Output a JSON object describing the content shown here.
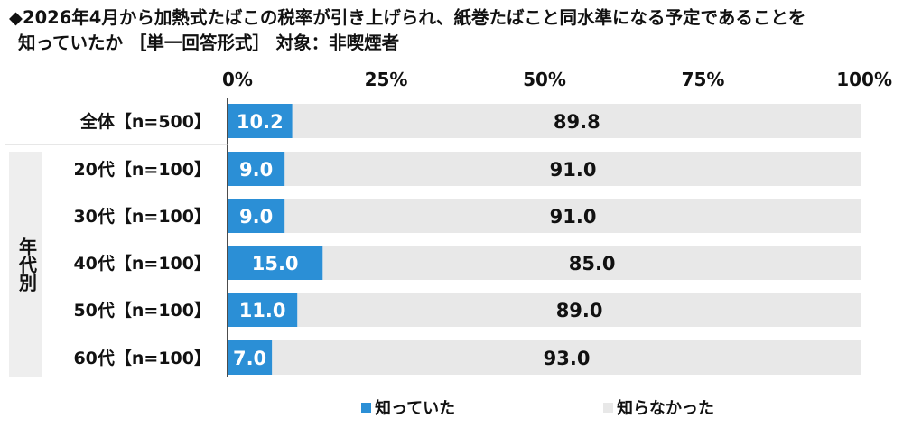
{
  "title_line1": "◆2026年4月から加熱式たばこの税率が引き上げられ、紙巻たばこと同水準になる予定であることを",
  "title_line2": "知っていたか ［単一回答形式］ 対象：非喫煙者",
  "chart_data": {
    "type": "bar",
    "orientation": "horizontal",
    "stacked": true,
    "percent_axis": true,
    "xlim": [
      0,
      100
    ],
    "x_ticks": [
      "0%",
      "25%",
      "50%",
      "75%",
      "100%"
    ],
    "group_label": "年代別",
    "categories": [
      "全体【n=500】",
      "20代【n=100】",
      "30代【n=100】",
      "40代【n=100】",
      "50代【n=100】",
      "60代【n=100】"
    ],
    "series": [
      {
        "name": "知っていた",
        "color": "#2b8fd6",
        "values": [
          10.2,
          9.0,
          9.0,
          15.0,
          11.0,
          7.0
        ],
        "labels": [
          "10.2",
          "9.0",
          "9.0",
          "15.0",
          "11.0",
          "7.0"
        ]
      },
      {
        "name": "知らなかった",
        "color": "#e8e8e8",
        "values": [
          89.8,
          91.0,
          91.0,
          85.0,
          89.0,
          93.0
        ],
        "labels": [
          "89.8",
          "91.0",
          "91.0",
          "85.0",
          "89.0",
          "93.0"
        ]
      }
    ],
    "legend_position": "bottom",
    "grid": false
  }
}
